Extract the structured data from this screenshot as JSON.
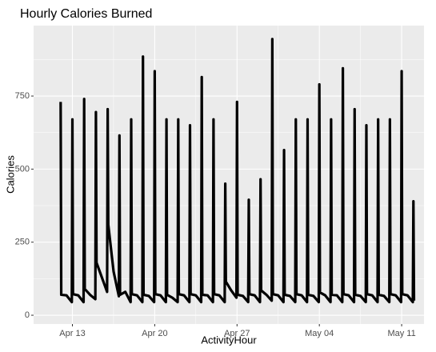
{
  "chart_data": {
    "type": "line",
    "title": "Hourly Calories Burned",
    "xlabel": "ActivityHour",
    "ylabel": "Calories",
    "x": [
      12,
      12.05,
      12.5,
      12.95,
      13,
      13.05,
      13.5,
      13.95,
      14,
      14.05,
      14.5,
      14.95,
      15,
      15.05,
      15.5,
      15.95,
      16,
      16.05,
      16.5,
      16.95,
      17,
      17.05,
      17.5,
      17.95,
      18,
      18.05,
      18.5,
      18.95,
      19,
      19.05,
      19.5,
      19.95,
      20,
      20.05,
      20.5,
      20.95,
      21,
      21.05,
      21.5,
      21.95,
      22,
      22.05,
      22.5,
      22.95,
      23,
      23.05,
      23.5,
      23.95,
      24,
      24.05,
      24.5,
      24.95,
      25,
      25.05,
      25.5,
      25.95,
      26,
      26.05,
      26.5,
      26.95,
      27,
      27.05,
      27.5,
      27.95,
      28,
      28.05,
      28.5,
      28.95,
      29,
      29.05,
      29.5,
      29.95,
      30,
      30.05,
      30.5,
      30.95,
      31,
      31.05,
      31.5,
      31.95,
      32,
      32.05,
      32.5,
      32.95,
      33,
      33.05,
      33.5,
      33.95,
      34,
      34.05,
      34.5,
      34.95,
      35,
      35.05,
      35.5,
      35.95,
      36,
      36.05,
      36.5,
      36.95,
      37,
      37.05,
      37.5,
      37.95,
      38,
      38.05,
      38.5,
      38.95,
      39,
      39.05,
      39.5,
      39.95,
      40,
      40.05,
      40.5,
      40.95,
      41,
      41.05,
      41.5,
      41.95,
      42,
      42.05
    ],
    "series": [
      {
        "name": "Calories",
        "color": "#000000",
        "values": [
          730,
          70,
          68,
          45,
          670,
          72,
          68,
          45,
          740,
          90,
          70,
          55,
          695,
          180,
          130,
          80,
          705,
          310,
          150,
          65,
          615,
          70,
          80,
          45,
          670,
          72,
          68,
          45,
          885,
          70,
          66,
          45,
          835,
          72,
          68,
          45,
          670,
          70,
          60,
          45,
          670,
          72,
          68,
          45,
          650,
          72,
          68,
          45,
          815,
          70,
          68,
          45,
          670,
          72,
          68,
          45,
          450,
          115,
          85,
          60,
          730,
          70,
          66,
          45,
          395,
          72,
          68,
          45,
          465,
          85,
          70,
          50,
          945,
          72,
          68,
          45,
          565,
          70,
          66,
          45,
          670,
          72,
          68,
          45,
          670,
          70,
          66,
          45,
          790,
          78,
          68,
          45,
          670,
          70,
          68,
          45,
          845,
          72,
          68,
          45,
          705,
          70,
          66,
          45,
          650,
          72,
          68,
          45,
          670,
          70,
          66,
          45,
          670,
          72,
          68,
          45,
          835,
          72,
          68,
          45,
          390,
          50
        ]
      }
    ],
    "xlim": [
      9.7,
      42.9
    ],
    "xticks": [
      {
        "value": 13,
        "label": "Apr 13"
      },
      {
        "value": 20,
        "label": "Apr 20"
      },
      {
        "value": 27,
        "label": "Apr 27"
      },
      {
        "value": 34,
        "label": "May 04"
      },
      {
        "value": 41,
        "label": "May 11"
      }
    ],
    "ylim": [
      -30,
      991
    ],
    "yticks": [
      0,
      250,
      500,
      750
    ],
    "grid": true
  }
}
